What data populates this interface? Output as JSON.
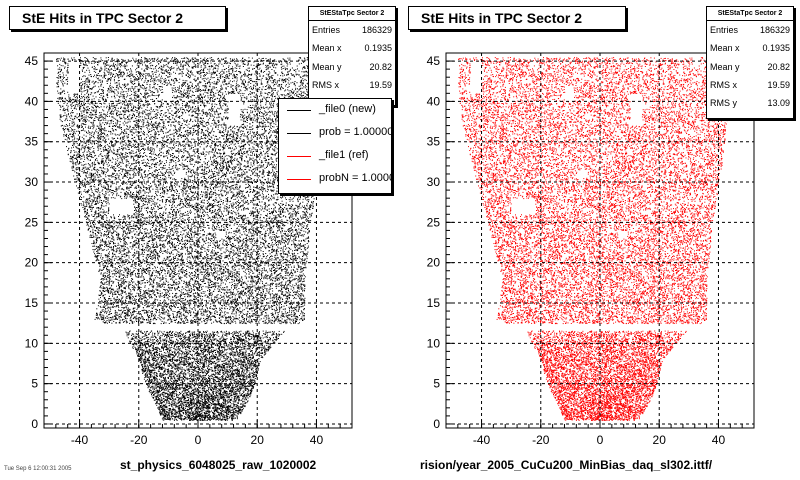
{
  "pads": [
    {
      "title": "StE Hits in TPC Sector 2",
      "stats": {
        "name": "StEStaTpc Sector 2",
        "rows": [
          [
            "Entries",
            "186329"
          ],
          [
            "Mean x",
            "0.1935"
          ],
          [
            "Mean y",
            "20.82"
          ],
          [
            "RMS x",
            "19.59"
          ]
        ]
      },
      "legend": [
        {
          "label": "_file0 (new)",
          "color": "#000000"
        },
        {
          "label": "prob = 1.000000",
          "color": "#000000"
        },
        {
          "label": "_file1 (ref)",
          "color": "#ff0000"
        },
        {
          "label": "probN = 1.000000",
          "color": "#ff0000"
        }
      ],
      "footer": "st_physics_6048025_raw_1020002",
      "marker_color": "#000000"
    },
    {
      "title": "StE Hits in TPC Sector 2",
      "stats": {
        "name": "StEStaTpc Sector 2",
        "rows": [
          [
            "Entries",
            "186329"
          ],
          [
            "Mean x",
            "0.1935"
          ],
          [
            "Mean y",
            "20.82"
          ],
          [
            "RMS x",
            "19.59"
          ],
          [
            "RMS y",
            "13.09"
          ]
        ]
      },
      "footer": "rision/year_2005_CuCu200_MinBias_daq_sl302.ittf/",
      "marker_color": "#ff0000"
    }
  ],
  "date_stamp": "Tue Sep  6 12:00:31 2005",
  "chart_data": [
    {
      "type": "scatter",
      "title": "StE Hits in TPC Sector 2",
      "xlim": [
        -52,
        52
      ],
      "ylim": [
        -0.5,
        46
      ],
      "xticks": [
        -40,
        -20,
        0,
        20,
        40
      ],
      "yticks": [
        0,
        5,
        10,
        15,
        20,
        25,
        30,
        35,
        40,
        45
      ],
      "grid": true,
      "color": "#000000",
      "legend_position": "top-right",
      "region_outline": {
        "y": [
          0.5,
          3,
          5,
          8,
          11.5,
          12.2,
          13,
          18,
          25,
          32,
          38,
          42,
          45.5
        ],
        "xmin": [
          -12,
          -15,
          -18,
          -20,
          -25,
          -30,
          -35,
          -33,
          -38,
          -43,
          -47,
          -48,
          -48
        ],
        "xmax": [
          13,
          17,
          19,
          21,
          29,
          34,
          36,
          36,
          38,
          41,
          43,
          44,
          44
        ]
      }
    },
    {
      "type": "scatter",
      "title": "StE Hits in TPC Sector 2",
      "xlim": [
        -52,
        52
      ],
      "ylim": [
        -0.5,
        46
      ],
      "xticks": [
        -40,
        -20,
        0,
        20,
        40
      ],
      "yticks": [
        0,
        5,
        10,
        15,
        20,
        25,
        30,
        35,
        40,
        45
      ],
      "grid": true,
      "color": "#ff0000",
      "region_outline": {
        "y": [
          0.5,
          3,
          5,
          8,
          11.5,
          12.2,
          13,
          18,
          25,
          32,
          38,
          42,
          45.5
        ],
        "xmin": [
          -12,
          -15,
          -18,
          -20,
          -25,
          -30,
          -35,
          -33,
          -38,
          -43,
          -47,
          -48,
          -48
        ],
        "xmax": [
          13,
          17,
          19,
          21,
          29,
          34,
          36,
          36,
          38,
          41,
          43,
          44,
          44
        ]
      }
    }
  ]
}
